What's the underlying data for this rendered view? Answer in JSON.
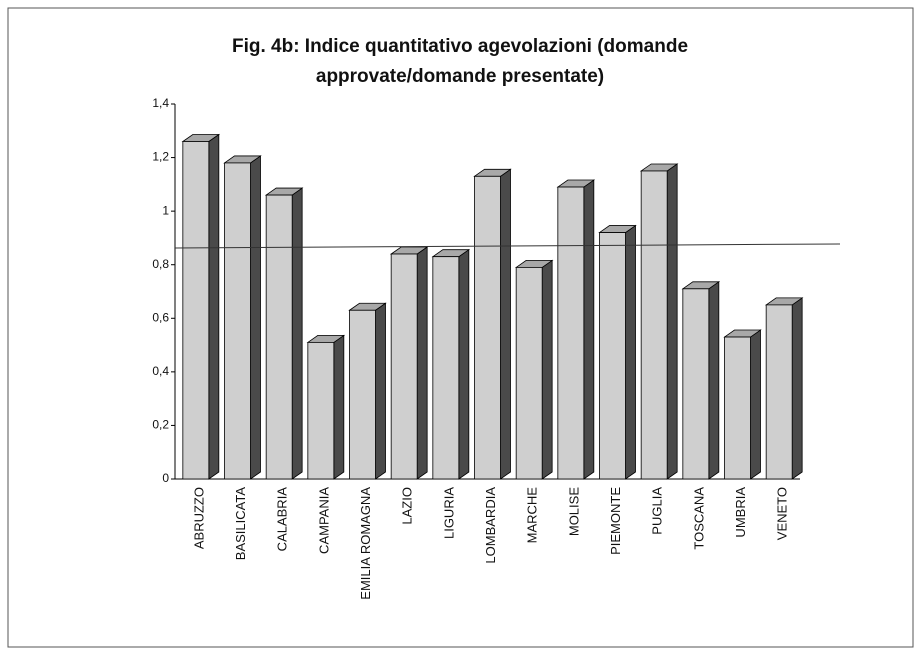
{
  "chart_data": {
    "type": "bar",
    "title": [
      "Fig. 4b: Indice quantitativo agevolazioni (domande",
      "approvate/domande presentate)"
    ],
    "categories": [
      "ABRUZZO",
      "BASILICATA",
      "CALABRIA",
      "CAMPANIA",
      "EMILIA ROMAGNA",
      "LAZIO",
      "LIGURIA",
      "LOMBARDIA",
      "MARCHE",
      "MOLISE",
      "PIEMONTE",
      "PUGLIA",
      "TOSCANA",
      "UMBRIA",
      "VENETO"
    ],
    "values": [
      1.26,
      1.18,
      1.06,
      0.51,
      0.63,
      0.84,
      0.83,
      1.13,
      0.79,
      1.09,
      0.92,
      1.15,
      0.71,
      0.53,
      0.65
    ],
    "color": "#cfcfcf",
    "reference_value": 0.87,
    "ylim": [
      0,
      1.4
    ],
    "yticks": [
      0,
      {
        "value": 0.2,
        "label": "0,2"
      },
      {
        "value": 0.4,
        "label": "0,4"
      },
      {
        "value": 0.6,
        "label": "0,6"
      },
      {
        "value": 0.8,
        "label": "0,8"
      },
      1,
      {
        "value": 1.2,
        "label": "1,2"
      },
      {
        "value": 1.4,
        "label": "1,4"
      }
    ]
  }
}
